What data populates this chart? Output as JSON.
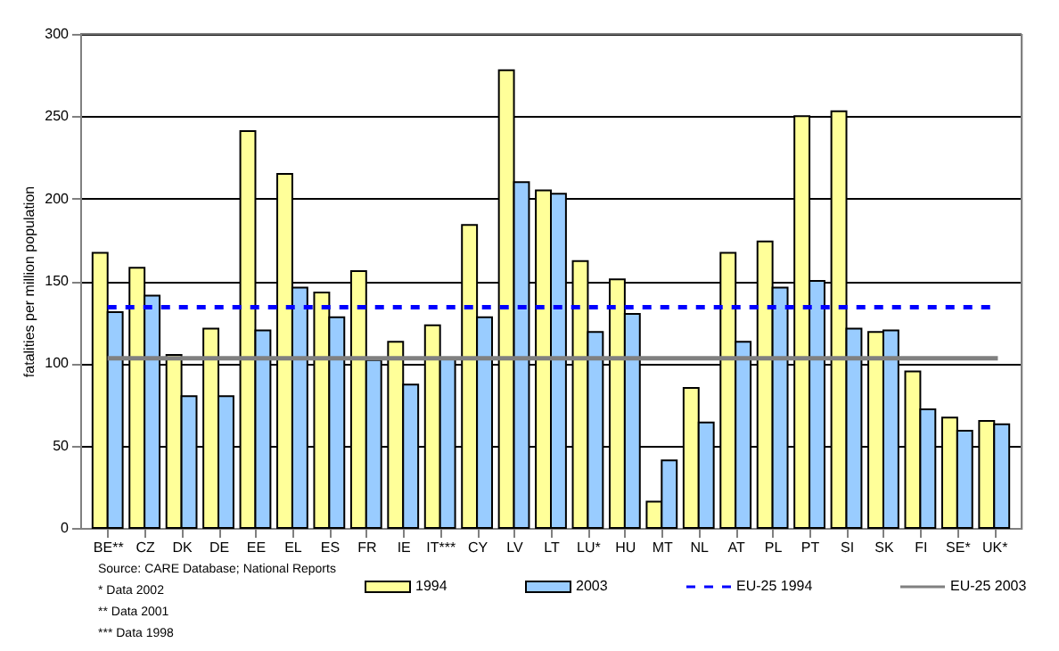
{
  "chart_data": {
    "type": "bar",
    "ylabel": "fatalities per million population",
    "categories": [
      "BE**",
      "CZ",
      "DK",
      "DE",
      "EE",
      "EL",
      "ES",
      "FR",
      "IE",
      "IT***",
      "CY",
      "LV",
      "LT",
      "LU*",
      "HU",
      "MT",
      "NL",
      "AT",
      "PL",
      "PT",
      "SI",
      "SK",
      "FI",
      "SE*",
      "UK*"
    ],
    "series": [
      {
        "name": "1994",
        "color": "#ffff99",
        "values": [
          167,
          158,
          105,
          121,
          241,
          215,
          143,
          156,
          113,
          123,
          184,
          278,
          205,
          162,
          151,
          16,
          85,
          167,
          174,
          250,
          253,
          119,
          95,
          67,
          65
        ]
      },
      {
        "name": "2003",
        "color": "#99ccff",
        "values": [
          131,
          141,
          80,
          80,
          120,
          146,
          128,
          102,
          87,
          103,
          128,
          210,
          203,
          119,
          130,
          41,
          64,
          113,
          146,
          150,
          121,
          120,
          72,
          59,
          63
        ]
      }
    ],
    "ylim": [
      0,
      300
    ],
    "yticks": [
      0,
      50,
      100,
      150,
      200,
      250,
      300
    ],
    "grid": "y",
    "legend": "bottom",
    "ref_lines": [
      {
        "axis": "y",
        "value": 134,
        "label": "EU-25 1994",
        "color": "#0000ff",
        "line_style": "dashed"
      },
      {
        "axis": "y",
        "value": 103,
        "label": "EU-25 2003",
        "color": "#808080",
        "line_style": "solid"
      }
    ],
    "annotations": [
      "Source: CARE Database; National Reports",
      "*     Data 2002",
      "**    Data 2001",
      "***   Data 1998"
    ]
  }
}
